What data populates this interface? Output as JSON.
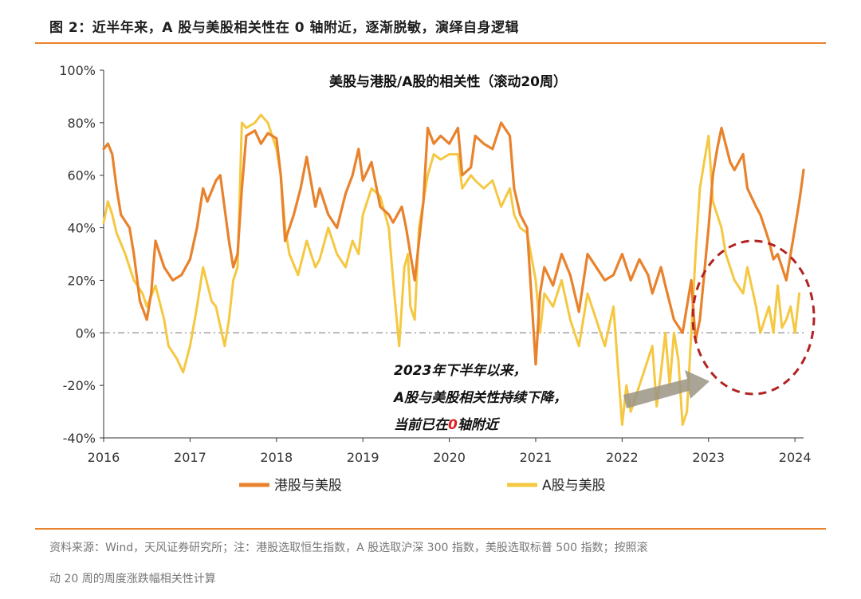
{
  "figure": {
    "title": "图 2：近半年来，A 股与美股相关性在 0 轴附近，逐渐脱敏，演绎自身逻辑",
    "source_line1": "资料来源：Wind，天风证券研究所；注：港股选取恒生指数，A 股选取沪深 300 指数，美股选取标普 500 指数；按照滚",
    "source_line2": "动 20 周的周度涨跌幅相关性计算"
  },
  "colors": {
    "hk": "#e8822c",
    "a": "#f5c842",
    "rule": "#e8822c",
    "zero_line": "#999999",
    "circle": "#b22222",
    "arrow": "#9a9484",
    "highlight": "#e02020"
  },
  "annotation": {
    "line1": "2023年下半年以来，",
    "line2": "A股与美股相关性持续下降，",
    "line3_pre": "当前已在",
    "line3_num": "0",
    "line3_post": "轴附近"
  },
  "chart_data": {
    "type": "line",
    "title": "美股与港股/A股的相关性（滚动20周）",
    "xlabel": "",
    "ylabel": "",
    "x_ticks": [
      "2016",
      "2017",
      "2018",
      "2019",
      "2020",
      "2021",
      "2022",
      "2023",
      "2024"
    ],
    "y_ticks": [
      "100%",
      "80%",
      "60%",
      "40%",
      "20%",
      "0%",
      "-20%",
      "-40%"
    ],
    "xlim": [
      2016.0,
      2024.1
    ],
    "ylim": [
      -40,
      100
    ],
    "reference_line": 0,
    "legend": [
      "港股与美股",
      "A股与美股"
    ],
    "legend_position": "bottom",
    "series": [
      {
        "name": "港股与美股",
        "x": [
          2016.0,
          2016.05,
          2016.1,
          2016.15,
          2016.2,
          2016.3,
          2016.35,
          2016.42,
          2016.5,
          2016.55,
          2016.6,
          2016.7,
          2016.8,
          2016.9,
          2017.0,
          2017.08,
          2017.15,
          2017.2,
          2017.3,
          2017.35,
          2017.45,
          2017.5,
          2017.55,
          2017.6,
          2017.65,
          2017.75,
          2017.82,
          2017.9,
          2018.0,
          2018.05,
          2018.1,
          2018.2,
          2018.28,
          2018.35,
          2018.45,
          2018.5,
          2018.6,
          2018.7,
          2018.8,
          2018.88,
          2018.95,
          2019.0,
          2019.1,
          2019.2,
          2019.3,
          2019.35,
          2019.45,
          2019.5,
          2019.6,
          2019.7,
          2019.75,
          2019.82,
          2019.9,
          2020.0,
          2020.1,
          2020.15,
          2020.25,
          2020.3,
          2020.4,
          2020.5,
          2020.6,
          2020.7,
          2020.75,
          2020.82,
          2020.9,
          2021.0,
          2021.05,
          2021.1,
          2021.2,
          2021.3,
          2021.4,
          2021.5,
          2021.6,
          2021.7,
          2021.8,
          2021.9,
          2022.0,
          2022.1,
          2022.2,
          2022.3,
          2022.35,
          2022.45,
          2022.5,
          2022.6,
          2022.7,
          2022.8,
          2022.85,
          2022.9,
          2023.0,
          2023.05,
          2023.1,
          2023.15,
          2023.25,
          2023.3,
          2023.4,
          2023.45,
          2023.55,
          2023.6,
          2023.7,
          2023.75,
          2023.8,
          2023.85,
          2023.9,
          2024.0,
          2024.05
        ],
        "values": [
          70,
          72,
          68,
          55,
          45,
          40,
          30,
          12,
          5,
          15,
          35,
          25,
          20,
          22,
          28,
          40,
          55,
          50,
          58,
          60,
          35,
          25,
          30,
          55,
          75,
          77,
          72,
          76,
          74,
          60,
          35,
          45,
          55,
          67,
          48,
          55,
          45,
          40,
          53,
          60,
          70,
          58,
          65,
          48,
          45,
          42,
          48,
          40,
          20,
          50,
          78,
          72,
          75,
          72,
          78,
          60,
          63,
          75,
          72,
          70,
          80,
          75,
          55,
          45,
          40,
          -12,
          15,
          25,
          18,
          30,
          22,
          8,
          30,
          25,
          20,
          22,
          30,
          20,
          28,
          22,
          15,
          25,
          18,
          5,
          0,
          20,
          -3,
          5,
          40,
          60,
          70,
          78,
          65,
          62,
          68,
          55,
          48,
          45,
          35,
          28,
          30,
          25,
          20,
          40,
          50
        ],
        "tail": [
          57,
          62
        ]
      },
      {
        "name": "A股与美股",
        "x": [
          2016.0,
          2016.05,
          2016.1,
          2016.15,
          2016.25,
          2016.35,
          2016.45,
          2016.5,
          2016.6,
          2016.7,
          2016.75,
          2016.85,
          2016.92,
          2017.0,
          2017.08,
          2017.15,
          2017.25,
          2017.3,
          2017.4,
          2017.45,
          2017.5,
          2017.55,
          2017.6,
          2017.65,
          2017.75,
          2017.82,
          2017.9,
          2018.0,
          2018.05,
          2018.1,
          2018.15,
          2018.25,
          2018.35,
          2018.45,
          2018.5,
          2018.6,
          2018.7,
          2018.8,
          2018.88,
          2018.95,
          2019.0,
          2019.1,
          2019.2,
          2019.3,
          2019.35,
          2019.42,
          2019.48,
          2019.52,
          2019.55,
          2019.6,
          2019.65,
          2019.75,
          2019.82,
          2019.9,
          2020.0,
          2020.1,
          2020.15,
          2020.25,
          2020.3,
          2020.4,
          2020.5,
          2020.6,
          2020.7,
          2020.75,
          2020.82,
          2020.9,
          2021.0,
          2021.05,
          2021.1,
          2021.2,
          2021.3,
          2021.4,
          2021.5,
          2021.6,
          2021.7,
          2021.8,
          2021.9,
          2022.0,
          2022.05,
          2022.1,
          2022.15,
          2022.25,
          2022.3,
          2022.35,
          2022.4,
          2022.45,
          2022.5,
          2022.55,
          2022.6,
          2022.65,
          2022.7,
          2022.75,
          2022.8,
          2022.85,
          2022.9,
          2022.95,
          2023.0,
          2023.05,
          2023.1,
          2023.15,
          2023.2,
          2023.3,
          2023.4,
          2023.45,
          2023.55,
          2023.6,
          2023.7,
          2023.75,
          2023.8,
          2023.85,
          2023.9,
          2023.95,
          2024.0,
          2024.05
        ],
        "values": [
          42,
          50,
          45,
          38,
          30,
          20,
          15,
          10,
          18,
          5,
          -5,
          -10,
          -15,
          -5,
          10,
          25,
          12,
          10,
          -5,
          5,
          20,
          25,
          80,
          78,
          80,
          83,
          80,
          70,
          60,
          40,
          30,
          22,
          35,
          25,
          28,
          40,
          30,
          25,
          35,
          30,
          45,
          55,
          52,
          40,
          20,
          -5,
          25,
          30,
          10,
          5,
          40,
          60,
          68,
          66,
          68,
          68,
          55,
          60,
          58,
          55,
          58,
          48,
          55,
          45,
          40,
          38,
          20,
          0,
          15,
          10,
          20,
          5,
          -5,
          15,
          5,
          -5,
          10,
          -35,
          -20,
          -30,
          -25,
          -15,
          -10,
          -5,
          -28,
          -15,
          0,
          -20,
          0,
          -10,
          -35,
          -30,
          0,
          30,
          55,
          65,
          75,
          50,
          45,
          40,
          30,
          20,
          15,
          25,
          10,
          0,
          10,
          0,
          18,
          2,
          5,
          10,
          0,
          15
        ]
      }
    ]
  }
}
